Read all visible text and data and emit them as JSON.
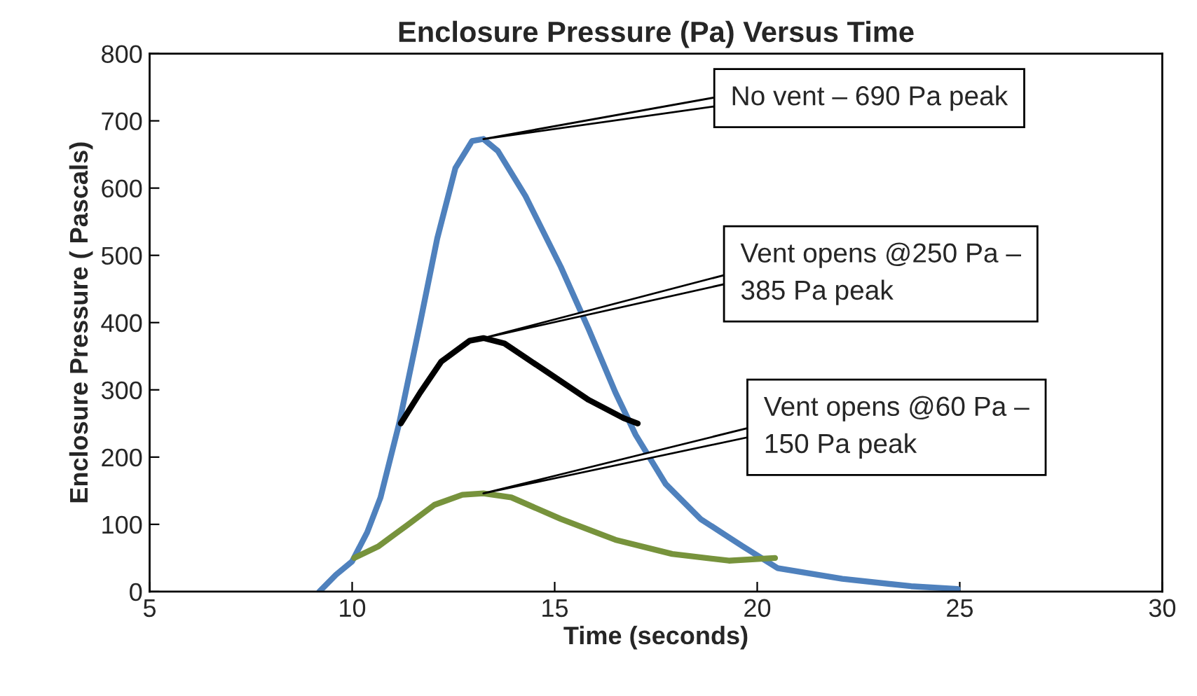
{
  "chart_data": {
    "type": "line",
    "title": "Enclosure Pressure (Pa) Versus Time",
    "xlabel": "Time (seconds)",
    "ylabel": "Enclosure Pressure ( Pascals)",
    "xlim": [
      5,
      30
    ],
    "xticks": [
      5,
      10,
      15,
      20,
      25,
      30
    ],
    "ylim": [
      0,
      800
    ],
    "yticks": [
      0,
      100,
      200,
      300,
      400,
      500,
      600,
      700,
      800
    ],
    "grid": false,
    "legend": false,
    "marker": "none",
    "line_style": "solid",
    "series": [
      {
        "color": "#4f81bd",
        "x": [
          9.19,
          9.6,
          10.0,
          10.37,
          10.7,
          11.16,
          11.68,
          12.1,
          12.55,
          12.96,
          13.24,
          13.6,
          14.28,
          15.15,
          15.84,
          16.5,
          17.0,
          17.74,
          18.6,
          19.65,
          20.5,
          22.1,
          23.8,
          24.95
        ],
        "values": [
          0,
          25,
          45,
          88,
          140,
          250,
          400,
          525,
          630,
          670,
          673,
          655,
          588,
          483,
          390,
          296,
          233,
          160,
          108,
          67,
          35,
          19,
          8,
          4
        ]
      },
      {
        "color": "#000000",
        "x": [
          11.2,
          11.68,
          12.2,
          12.9,
          13.24,
          13.76,
          14.8,
          15.84,
          16.7,
          17.05
        ],
        "values": [
          250,
          296,
          342,
          373,
          377,
          369,
          327,
          285,
          258,
          250
        ]
      },
      {
        "color": "#77933c",
        "x": [
          10.05,
          10.64,
          11.34,
          12.03,
          12.72,
          13.24,
          13.93,
          15.15,
          16.5,
          17.9,
          19.3,
          20.44
        ],
        "values": [
          50,
          67,
          98,
          129,
          144,
          146,
          140,
          108,
          77,
          56,
          46,
          50
        ]
      }
    ],
    "annotations": [
      "No vent – 690 Pa peak",
      "Vent opens @250 Pa –\n385 Pa peak",
      "Vent opens @60 Pa –\n150 Pa peak"
    ]
  }
}
